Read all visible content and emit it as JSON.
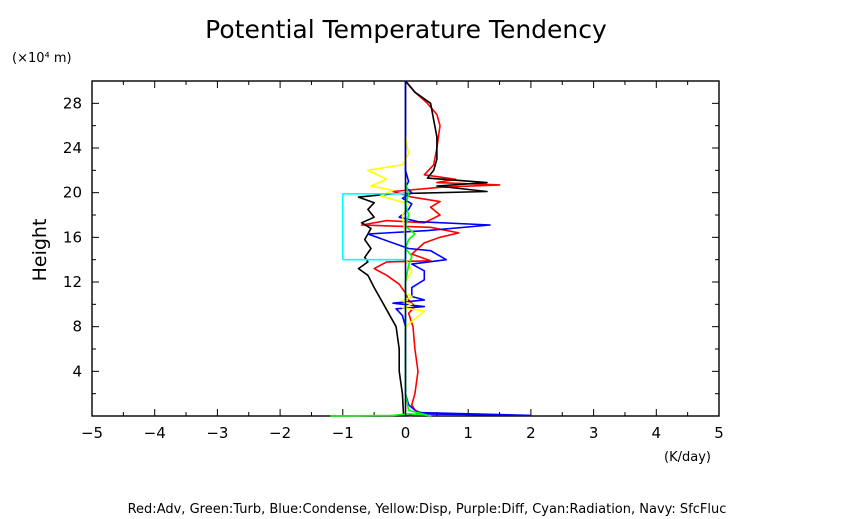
{
  "chart_data": {
    "type": "line",
    "title": "Potential Temperature Tendency",
    "ylabel": "Height",
    "yunit_label": "(×10⁴ m)",
    "xunit_label": "(K/day)",
    "legend_text": "Red:Adv, Green:Turb, Blue:Condense, Yellow:Disp, Purple:Diff, Cyan:Radiation, Navy: SfcFluc",
    "xlim": [
      -5,
      5
    ],
    "ylim": [
      0,
      30
    ],
    "xticks": [
      -5,
      -4,
      -3,
      -2,
      -1,
      0,
      1,
      2,
      3,
      4,
      5
    ],
    "xtick_labels": [
      "−5",
      "−4",
      "−3",
      "−2",
      "−1",
      "0",
      "1",
      "2",
      "3",
      "4",
      "5"
    ],
    "yticks": [
      4,
      8,
      12,
      16,
      20,
      24,
      28
    ],
    "yticks_labels": [
      "4",
      "8",
      "12",
      "16",
      "20",
      "24",
      "28"
    ],
    "grid": false,
    "series": [
      {
        "color": "#ff0000",
        "points": [
          [
            0.05,
            0
          ],
          [
            0.3,
            0.2
          ],
          [
            0.15,
            0.5
          ],
          [
            0.1,
            1
          ],
          [
            0.15,
            2
          ],
          [
            0.2,
            4
          ],
          [
            0.15,
            6
          ],
          [
            0.12,
            8
          ],
          [
            0.05,
            9.2
          ],
          [
            0.15,
            9.8
          ],
          [
            0.05,
            10.4
          ],
          [
            0,
            11
          ],
          [
            -0.1,
            11.8
          ],
          [
            -0.3,
            12.6
          ],
          [
            -0.5,
            13.2
          ],
          [
            -0.3,
            13.8
          ],
          [
            0.4,
            13.9
          ],
          [
            0.1,
            14.5
          ],
          [
            0.3,
            15.5
          ],
          [
            0.55,
            16
          ],
          [
            0.85,
            16.4
          ],
          [
            0.4,
            16.9
          ],
          [
            -0.7,
            17.1
          ],
          [
            -0.3,
            17.5
          ],
          [
            0.3,
            17.3
          ],
          [
            0.55,
            18
          ],
          [
            0.4,
            18.7
          ],
          [
            0.55,
            19.2
          ],
          [
            0.1,
            19.6
          ],
          [
            -0.2,
            20.1
          ],
          [
            0.6,
            20.5
          ],
          [
            1.5,
            20.7
          ],
          [
            0.5,
            20.9
          ],
          [
            0.8,
            21.2
          ],
          [
            0.3,
            21.6
          ],
          [
            0.45,
            22.5
          ],
          [
            0.5,
            24
          ],
          [
            0.55,
            26
          ],
          [
            0.5,
            27
          ],
          [
            0.35,
            28
          ],
          [
            0.15,
            29
          ],
          [
            0,
            30
          ]
        ]
      },
      {
        "color": "#000000",
        "points": [
          [
            -0.03,
            0
          ],
          [
            -0.05,
            2
          ],
          [
            -0.1,
            4
          ],
          [
            -0.1,
            6
          ],
          [
            -0.15,
            8
          ],
          [
            -0.35,
            10
          ],
          [
            -0.5,
            11.5
          ],
          [
            -0.6,
            12.6
          ],
          [
            -0.75,
            13.2
          ],
          [
            -0.6,
            13.8
          ],
          [
            -0.65,
            14.2
          ],
          [
            -0.55,
            15
          ],
          [
            -0.65,
            15.8
          ],
          [
            -0.55,
            16.8
          ],
          [
            -0.7,
            17.3
          ],
          [
            -0.5,
            17.8
          ],
          [
            -0.6,
            18.5
          ],
          [
            -0.5,
            19.1
          ],
          [
            -0.75,
            19.6
          ],
          [
            -0.2,
            19.9
          ],
          [
            1.3,
            20.1
          ],
          [
            0.5,
            20.6
          ],
          [
            1.3,
            20.9
          ],
          [
            0.35,
            21.3
          ],
          [
            0.45,
            22
          ],
          [
            0.5,
            23
          ],
          [
            0.5,
            25
          ],
          [
            0.45,
            26.5
          ],
          [
            0.4,
            28
          ],
          [
            0.15,
            29
          ],
          [
            0,
            30
          ]
        ]
      },
      {
        "color": "#0000ff",
        "points": [
          [
            0,
            0
          ],
          [
            0.2,
            0.2
          ],
          [
            2,
            0.05
          ],
          [
            0.2,
            0.3
          ],
          [
            0.05,
            1
          ],
          [
            0,
            2
          ],
          [
            0,
            4
          ],
          [
            0,
            6
          ],
          [
            0,
            8
          ],
          [
            -0.05,
            9
          ],
          [
            -0.15,
            9.6
          ],
          [
            0.3,
            9.8
          ],
          [
            -0.2,
            10.1
          ],
          [
            0.3,
            10.4
          ],
          [
            0.1,
            10.7
          ],
          [
            0.1,
            11.5
          ],
          [
            0.3,
            12.2
          ],
          [
            0.3,
            13
          ],
          [
            0.1,
            13.6
          ],
          [
            0.65,
            14
          ],
          [
            0.4,
            14.8
          ],
          [
            0.05,
            15
          ],
          [
            -0.6,
            16.3
          ],
          [
            0.35,
            16.6
          ],
          [
            1.35,
            17.1
          ],
          [
            0.2,
            17.4
          ],
          [
            -0.1,
            17.8
          ],
          [
            0.05,
            18.5
          ],
          [
            0.1,
            19
          ],
          [
            -0.05,
            19.5
          ],
          [
            0.1,
            20
          ],
          [
            0,
            20.5
          ],
          [
            0.05,
            21
          ],
          [
            0,
            22
          ],
          [
            0,
            30
          ]
        ]
      },
      {
        "color": "#ffff00",
        "points": [
          [
            0,
            0
          ],
          [
            0,
            8
          ],
          [
            0.3,
            9.4
          ],
          [
            -0.05,
            9.7
          ],
          [
            0.1,
            10
          ],
          [
            -0.05,
            10.3
          ],
          [
            0.1,
            10.7
          ],
          [
            0,
            11
          ],
          [
            0,
            12
          ],
          [
            0.1,
            13
          ],
          [
            0,
            14
          ],
          [
            0,
            16
          ],
          [
            -0.05,
            18
          ],
          [
            0.05,
            19
          ],
          [
            -0.4,
            19.7
          ],
          [
            -0.2,
            20.2
          ],
          [
            -0.55,
            20.6
          ],
          [
            -0.3,
            21.2
          ],
          [
            -0.6,
            22
          ],
          [
            -0.05,
            22.5
          ],
          [
            0.05,
            23.5
          ],
          [
            0,
            25
          ]
        ]
      },
      {
        "color": "#00ff00",
        "points": [
          [
            -1.2,
            0
          ],
          [
            -0.2,
            0.05
          ],
          [
            0.05,
            0.2
          ],
          [
            0.3,
            0.1
          ],
          [
            0.4,
            0
          ],
          [
            0.05,
            0.5
          ],
          [
            0,
            2
          ],
          [
            0,
            12
          ],
          [
            0.05,
            13.5
          ],
          [
            0.1,
            14.3
          ],
          [
            0,
            15
          ],
          [
            0.05,
            15.8
          ],
          [
            0.15,
            16.3
          ],
          [
            0,
            17
          ],
          [
            0.05,
            18
          ],
          [
            0,
            19
          ],
          [
            0.05,
            19.8
          ],
          [
            0,
            21
          ]
        ]
      },
      {
        "color": "#00ffff",
        "points": [
          [
            -1,
            14
          ],
          [
            -1,
            19.9
          ],
          [
            0,
            19.9
          ],
          [
            0,
            20
          ],
          [
            0,
            14
          ],
          [
            -1,
            14
          ]
        ]
      },
      {
        "color": "#000080",
        "points": [
          [
            0,
            0
          ],
          [
            0,
            30
          ]
        ]
      }
    ]
  }
}
